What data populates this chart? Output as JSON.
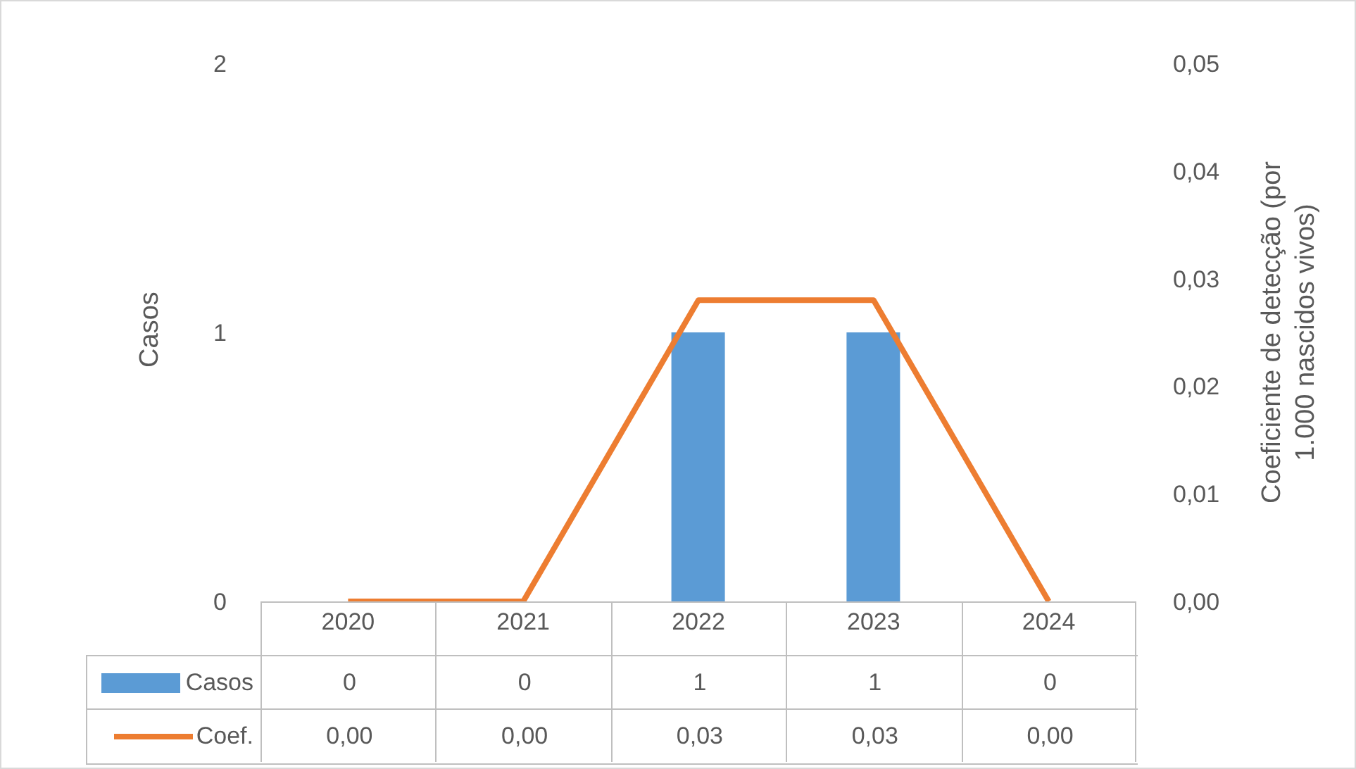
{
  "chart_data": {
    "type": "bar",
    "categories": [
      "2020",
      "2021",
      "2022",
      "2023",
      "2024"
    ],
    "series": [
      {
        "name": "Casos",
        "color": "#5b9bd5",
        "values": [
          0,
          0,
          1,
          1,
          0
        ],
        "value_labels": [
          "0",
          "0",
          "1",
          "1",
          "0"
        ]
      },
      {
        "name": "Coef.",
        "type": "line",
        "axis": "y2",
        "color": "#ed7d31",
        "values": [
          0,
          0,
          0.028,
          0.028,
          0
        ],
        "value_labels": [
          "0,00",
          "0,00",
          "0,03",
          "0,03",
          "0,00"
        ]
      }
    ],
    "ylabel": "Casos",
    "y2label": "Coeficiente de detecção (por 1.000 nascidos vivos)",
    "ylim": [
      0,
      2
    ],
    "yticks": [
      0,
      1,
      2
    ],
    "y2lim": [
      0,
      0.05
    ],
    "y2ticks": [
      {
        "value": 0,
        "label": "0,00"
      },
      {
        "value": 0.01,
        "label": "0,01"
      },
      {
        "value": 0.02,
        "label": "0,02"
      },
      {
        "value": 0.03,
        "label": "0,03"
      },
      {
        "value": 0.04,
        "label": "0,04"
      },
      {
        "value": 0.05,
        "label": "0,05"
      }
    ],
    "legend": "bottom",
    "marker": "none",
    "grid": false
  }
}
